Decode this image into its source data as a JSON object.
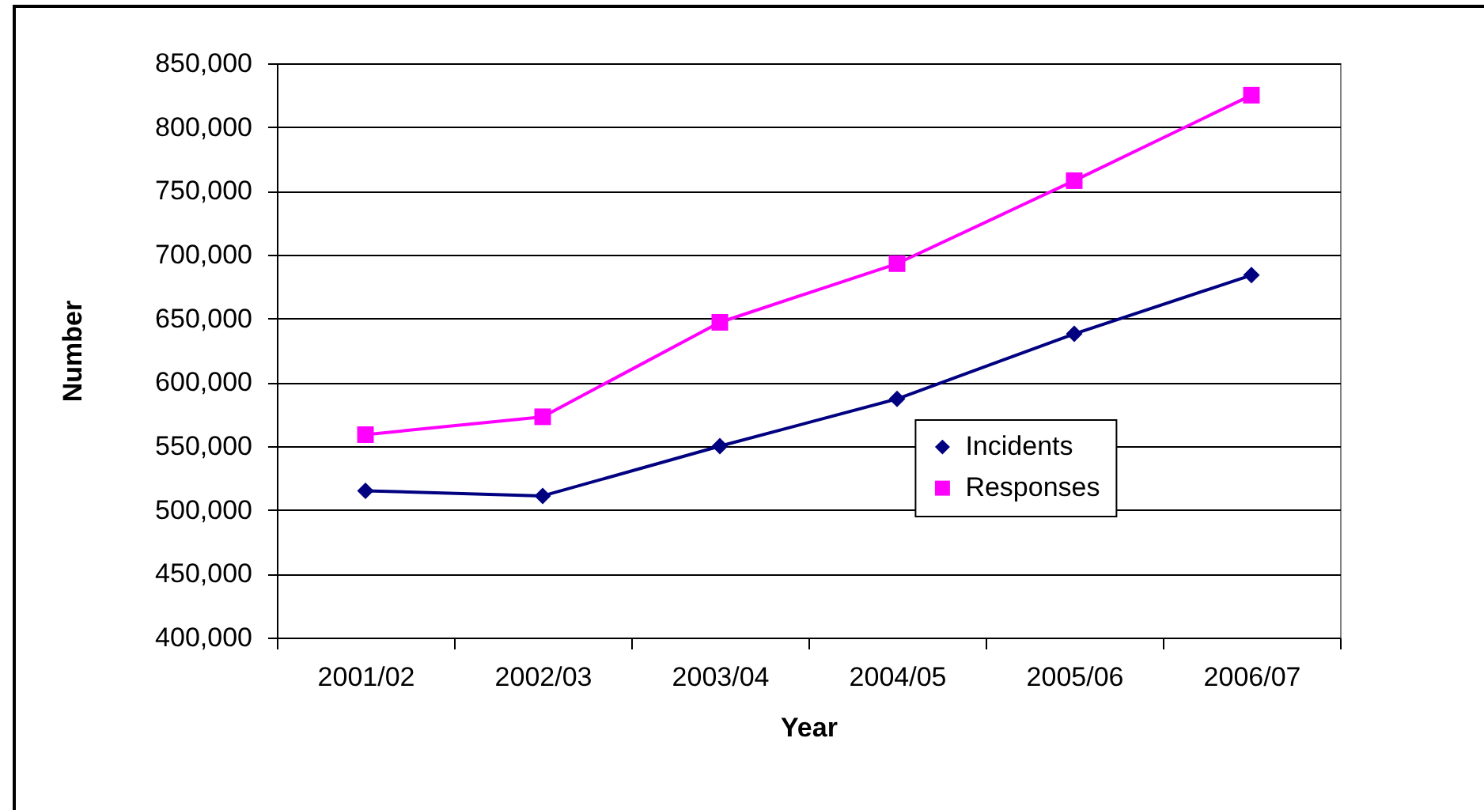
{
  "chart_data": {
    "type": "line",
    "xlabel": "Year",
    "ylabel": "Number",
    "categories": [
      "2001/02",
      "2002/03",
      "2003/04",
      "2004/05",
      "2005/06",
      "2006/07"
    ],
    "series": [
      {
        "name": "Incidents",
        "color": "#000080",
        "marker": "diamond",
        "values": [
          515000,
          511000,
          550000,
          587000,
          638000,
          684000
        ]
      },
      {
        "name": "Responses",
        "color": "#ff00ff",
        "marker": "square",
        "values": [
          559000,
          573000,
          647000,
          693000,
          758000,
          825000
        ]
      }
    ],
    "ylim": [
      400000,
      850000
    ],
    "yticks": [
      {
        "value": 400000,
        "label": "400,000"
      },
      {
        "value": 450000,
        "label": "450,000"
      },
      {
        "value": 500000,
        "label": "500,000"
      },
      {
        "value": 550000,
        "label": "550,000"
      },
      {
        "value": 600000,
        "label": "600,000"
      },
      {
        "value": 650000,
        "label": "650,000"
      },
      {
        "value": 700000,
        "label": "700,000"
      },
      {
        "value": 750000,
        "label": "750,000"
      },
      {
        "value": 800000,
        "label": "800,000"
      },
      {
        "value": 850000,
        "label": "850,000"
      }
    ],
    "grid": "y",
    "legend": "right"
  }
}
